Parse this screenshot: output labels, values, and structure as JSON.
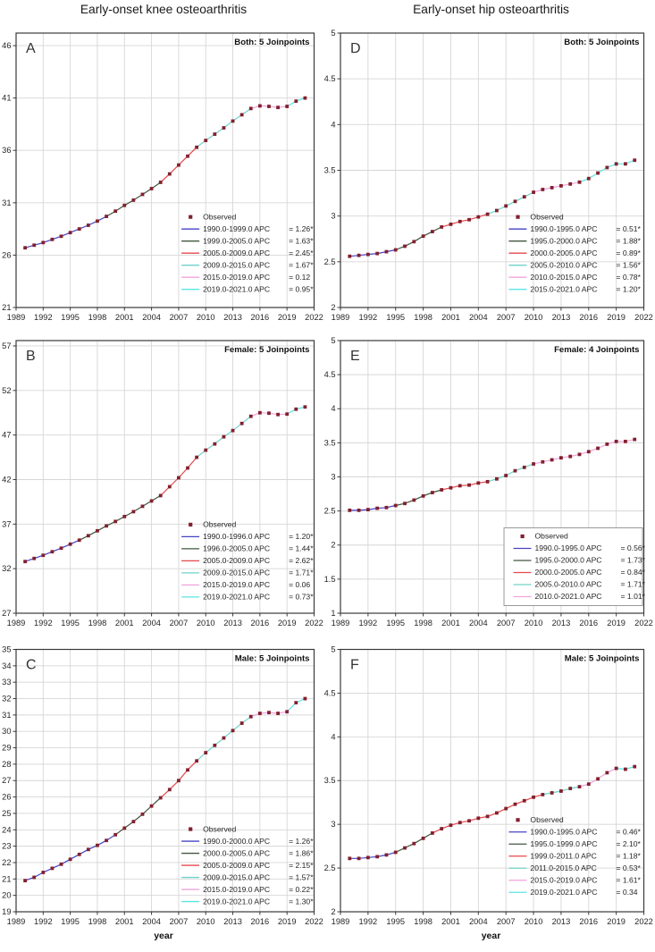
{
  "figure": {
    "column_titles": [
      "Early-onset knee osteoarthritis",
      "Early-onset hip osteoarthritis"
    ],
    "x_axis_label": "year",
    "colors": {
      "observed_marker": "#82202e",
      "blue": "#4743c4",
      "green": "#41573f",
      "red": "#e6484e",
      "teal": "#6fd3cb",
      "pink": "#f0a3dc",
      "cyan": "#5ce4e4",
      "gridline": "#d6d6d6",
      "axis_border": "#3a3a3a",
      "text": "#262626"
    }
  },
  "chart_data": [
    {
      "id": "A",
      "panel_label": "A",
      "title": "Both: 5 Joinpoints",
      "type": "line",
      "x": [
        1990,
        1991,
        1992,
        1993,
        1994,
        1995,
        1996,
        1997,
        1998,
        1999,
        2000,
        2001,
        2002,
        2003,
        2004,
        2005,
        2006,
        2007,
        2008,
        2009,
        2010,
        2011,
        2012,
        2013,
        2014,
        2015,
        2016,
        2017,
        2018,
        2019,
        2020,
        2021
      ],
      "observed": [
        26.7,
        26.95,
        27.2,
        27.5,
        27.8,
        28.15,
        28.5,
        28.85,
        29.25,
        29.7,
        30.2,
        30.75,
        31.25,
        31.8,
        32.35,
        32.95,
        33.75,
        34.6,
        35.45,
        36.3,
        36.95,
        37.55,
        38.15,
        38.8,
        39.4,
        40.0,
        40.25,
        40.2,
        40.1,
        40.2,
        40.7,
        41.0
      ],
      "xlim": [
        1989,
        2022
      ],
      "ylim": [
        21,
        47.2
      ],
      "xticks": [
        1989,
        1992,
        1995,
        1998,
        2001,
        2004,
        2007,
        2010,
        2013,
        2016,
        2019,
        2022
      ],
      "yticks": [
        21,
        26,
        31,
        36,
        41,
        46
      ],
      "legend": {
        "observed_label": "Observed",
        "boxed": false,
        "entries": [
          {
            "period": "1990.0-1999.0 APC",
            "value": "= 1.26*",
            "color": "blue",
            "range": [
              1990,
              1999
            ]
          },
          {
            "period": "1999.0-2005.0 APC",
            "value": "= 1.63*",
            "color": "green",
            "range": [
              1999,
              2005
            ]
          },
          {
            "period": "2005.0-2009.0 APC",
            "value": "= 2.45*",
            "color": "red",
            "range": [
              2005,
              2009
            ]
          },
          {
            "period": "2009.0-2015.0 APC",
            "value": "= 1.67*",
            "color": "teal",
            "range": [
              2009,
              2015
            ]
          },
          {
            "period": "2015.0-2019.0 APC",
            "value": "= 0.12",
            "color": "pink",
            "range": [
              2015,
              2019
            ]
          },
          {
            "period": "2019.0-2021.0 APC",
            "value": "= 0.95*",
            "color": "cyan",
            "range": [
              2019,
              2021
            ]
          }
        ]
      }
    },
    {
      "id": "B",
      "panel_label": "B",
      "title": "Female: 5 Joinpoints",
      "type": "line",
      "x": [
        1990,
        1991,
        1992,
        1993,
        1994,
        1995,
        1996,
        1997,
        1998,
        1999,
        2000,
        2001,
        2002,
        2003,
        2004,
        2005,
        2006,
        2007,
        2008,
        2009,
        2010,
        2011,
        2012,
        2013,
        2014,
        2015,
        2016,
        2017,
        2018,
        2019,
        2020,
        2021
      ],
      "observed": [
        32.8,
        33.15,
        33.5,
        33.9,
        34.3,
        34.75,
        35.2,
        35.7,
        36.25,
        36.8,
        37.3,
        37.85,
        38.4,
        39.0,
        39.6,
        40.2,
        41.2,
        42.2,
        43.3,
        44.5,
        45.3,
        46.0,
        46.8,
        47.5,
        48.3,
        49.1,
        49.5,
        49.45,
        49.3,
        49.35,
        49.9,
        50.15
      ],
      "xlim": [
        1989,
        2022
      ],
      "ylim": [
        27,
        57.6
      ],
      "xticks": [
        1989,
        1992,
        1995,
        1998,
        2001,
        2004,
        2007,
        2010,
        2013,
        2016,
        2019,
        2022
      ],
      "yticks": [
        27,
        32,
        37,
        42,
        47,
        52,
        57
      ],
      "legend": {
        "observed_label": "Observed",
        "boxed": false,
        "entries": [
          {
            "period": "1990.0-1996.0 APC",
            "value": "= 1.20*",
            "color": "blue",
            "range": [
              1990,
              1996
            ]
          },
          {
            "period": "1996.0-2005.0 APC",
            "value": "= 1.44*",
            "color": "green",
            "range": [
              1996,
              2005
            ]
          },
          {
            "period": "2005.0-2009.0 APC",
            "value": "= 2.62*",
            "color": "red",
            "range": [
              2005,
              2009
            ]
          },
          {
            "period": "2009.0-2015.0 APC",
            "value": "= 1.71*",
            "color": "teal",
            "range": [
              2009,
              2015
            ]
          },
          {
            "period": "2015.0-2019.0 APC",
            "value": "= 0.06",
            "color": "pink",
            "range": [
              2015,
              2019
            ]
          },
          {
            "period": "2019.0-2021.0 APC",
            "value": "= 0.73*",
            "color": "cyan",
            "range": [
              2019,
              2021
            ]
          }
        ]
      }
    },
    {
      "id": "C",
      "panel_label": "C",
      "title": "Male: 5 Joinpoints",
      "type": "line",
      "x": [
        1990,
        1991,
        1992,
        1993,
        1994,
        1995,
        1996,
        1997,
        1998,
        1999,
        2000,
        2001,
        2002,
        2003,
        2004,
        2005,
        2006,
        2007,
        2008,
        2009,
        2010,
        2011,
        2012,
        2013,
        2014,
        2015,
        2016,
        2017,
        2018,
        2019,
        2020,
        2021
      ],
      "observed": [
        20.9,
        21.1,
        21.4,
        21.65,
        21.9,
        22.2,
        22.5,
        22.8,
        23.05,
        23.35,
        23.7,
        24.1,
        24.5,
        24.95,
        25.45,
        25.95,
        26.45,
        27.0,
        27.65,
        28.2,
        28.7,
        29.15,
        29.6,
        30.05,
        30.5,
        30.9,
        31.1,
        31.15,
        31.1,
        31.2,
        31.75,
        32.0
      ],
      "xlim": [
        1989,
        2022
      ],
      "ylim": [
        19,
        35
      ],
      "xticks": [
        1989,
        1992,
        1995,
        1998,
        2001,
        2004,
        2007,
        2010,
        2013,
        2016,
        2019,
        2022
      ],
      "yticks": [
        19,
        20,
        21,
        22,
        23,
        24,
        25,
        26,
        27,
        28,
        29,
        30,
        31,
        32,
        33,
        34,
        35
      ],
      "legend": {
        "observed_label": "Observed",
        "boxed": false,
        "entries": [
          {
            "period": "1990.0-2000.0 APC",
            "value": "= 1.26*",
            "color": "blue",
            "range": [
              1990,
              2000
            ]
          },
          {
            "period": "2000.0-2005.0 APC",
            "value": "= 1.86*",
            "color": "green",
            "range": [
              2000,
              2005
            ]
          },
          {
            "period": "2005.0-2009.0 APC",
            "value": "= 2.15*",
            "color": "red",
            "range": [
              2005,
              2009
            ]
          },
          {
            "period": "2009.0-2015.0 APC",
            "value": "= 1.57*",
            "color": "teal",
            "range": [
              2009,
              2015
            ]
          },
          {
            "period": "2015.0-2019.0 APC",
            "value": "= 0.22*",
            "color": "pink",
            "range": [
              2015,
              2019
            ]
          },
          {
            "period": "2019.0-2021.0 APC",
            "value": "= 1.30*",
            "color": "cyan",
            "range": [
              2019,
              2021
            ]
          }
        ]
      }
    },
    {
      "id": "D",
      "panel_label": "D",
      "title": "Both: 5 Joinpoints",
      "type": "line",
      "x": [
        1990,
        1991,
        1992,
        1993,
        1994,
        1995,
        1996,
        1997,
        1998,
        1999,
        2000,
        2001,
        2002,
        2003,
        2004,
        2005,
        2006,
        2007,
        2008,
        2009,
        2010,
        2011,
        2012,
        2013,
        2014,
        2015,
        2016,
        2017,
        2018,
        2019,
        2020,
        2021
      ],
      "observed": [
        2.56,
        2.57,
        2.58,
        2.59,
        2.61,
        2.63,
        2.67,
        2.72,
        2.78,
        2.83,
        2.88,
        2.91,
        2.94,
        2.96,
        2.99,
        3.02,
        3.06,
        3.11,
        3.16,
        3.21,
        3.26,
        3.29,
        3.31,
        3.33,
        3.35,
        3.37,
        3.41,
        3.47,
        3.53,
        3.57,
        3.57,
        3.61
      ],
      "xlim": [
        1989,
        2022
      ],
      "ylim": [
        2,
        5
      ],
      "xticks": [
        1989,
        1992,
        1995,
        1998,
        2001,
        2004,
        2007,
        2010,
        2013,
        2016,
        2019,
        2022
      ],
      "yticks": [
        2,
        2.5,
        3,
        3.5,
        4,
        4.5,
        5
      ],
      "legend": {
        "observed_label": "Observed",
        "boxed": false,
        "entries": [
          {
            "period": "1990.0-1995.0 APC",
            "value": "= 0.51*",
            "color": "blue",
            "range": [
              1990,
              1995
            ]
          },
          {
            "period": "1995.0-2000.0 APC",
            "value": "= 1.88*",
            "color": "green",
            "range": [
              1995,
              2000
            ]
          },
          {
            "period": "2000.0-2005.0 APC",
            "value": "= 0.89*",
            "color": "red",
            "range": [
              2000,
              2005
            ]
          },
          {
            "period": "2005.0-2010.0 APC",
            "value": "= 1.56*",
            "color": "teal",
            "range": [
              2005,
              2010
            ]
          },
          {
            "period": "2010.0-2015.0 APC",
            "value": "= 0.78*",
            "color": "pink",
            "range": [
              2010,
              2015
            ]
          },
          {
            "period": "2015.0-2021.0 APC",
            "value": "= 1.20*",
            "color": "cyan",
            "range": [
              2015,
              2021
            ]
          }
        ]
      }
    },
    {
      "id": "E",
      "panel_label": "E",
      "title": "Female: 4 Joinpoints",
      "type": "line",
      "x": [
        1990,
        1991,
        1992,
        1993,
        1994,
        1995,
        1996,
        1997,
        1998,
        1999,
        2000,
        2001,
        2002,
        2003,
        2004,
        2005,
        2006,
        2007,
        2008,
        2009,
        2010,
        2011,
        2012,
        2013,
        2014,
        2015,
        2016,
        2017,
        2018,
        2019,
        2020,
        2021
      ],
      "observed": [
        2.51,
        2.51,
        2.52,
        2.54,
        2.55,
        2.58,
        2.61,
        2.66,
        2.72,
        2.77,
        2.81,
        2.84,
        2.87,
        2.88,
        2.91,
        2.93,
        2.97,
        3.02,
        3.09,
        3.14,
        3.19,
        3.22,
        3.25,
        3.28,
        3.3,
        3.33,
        3.37,
        3.42,
        3.48,
        3.52,
        3.52,
        3.55
      ],
      "xlim": [
        1989,
        2022
      ],
      "ylim": [
        1,
        5
      ],
      "xticks": [
        1989,
        1992,
        1995,
        1998,
        2001,
        2004,
        2007,
        2010,
        2013,
        2016,
        2019,
        2022
      ],
      "yticks": [
        1,
        1.5,
        2,
        2.5,
        3,
        3.5,
        4,
        4.5,
        5
      ],
      "legend": {
        "observed_label": "Observed",
        "boxed": true,
        "entries": [
          {
            "period": "1990.0-1995.0 APC",
            "value": "= 0.56*",
            "color": "blue",
            "range": [
              1990,
              1995
            ]
          },
          {
            "period": "1995.0-2000.0 APC",
            "value": "= 1.73*",
            "color": "green",
            "range": [
              1995,
              2000
            ]
          },
          {
            "period": "2000.0-2005.0 APC",
            "value": "= 0.84*",
            "color": "red",
            "range": [
              2000,
              2005
            ]
          },
          {
            "period": "2005.0-2010.0 APC",
            "value": "= 1.71*",
            "color": "teal",
            "range": [
              2005,
              2010
            ]
          },
          {
            "period": "2010.0-2021.0 APC",
            "value": "= 1.01*",
            "color": "pink",
            "range": [
              2010,
              2021
            ]
          }
        ]
      }
    },
    {
      "id": "F",
      "panel_label": "F",
      "title": "Male: 5 Joinpoints",
      "type": "line",
      "x": [
        1990,
        1991,
        1992,
        1993,
        1994,
        1995,
        1996,
        1997,
        1998,
        1999,
        2000,
        2001,
        2002,
        2003,
        2004,
        2005,
        2006,
        2007,
        2008,
        2009,
        2010,
        2011,
        2012,
        2013,
        2014,
        2015,
        2016,
        2017,
        2018,
        2019,
        2020,
        2021
      ],
      "observed": [
        2.61,
        2.61,
        2.62,
        2.63,
        2.65,
        2.68,
        2.73,
        2.78,
        2.84,
        2.9,
        2.95,
        2.99,
        3.02,
        3.04,
        3.07,
        3.09,
        3.13,
        3.18,
        3.23,
        3.27,
        3.31,
        3.34,
        3.36,
        3.38,
        3.41,
        3.43,
        3.46,
        3.52,
        3.59,
        3.64,
        3.63,
        3.66
      ],
      "xlim": [
        1989,
        2022
      ],
      "ylim": [
        2,
        5
      ],
      "xticks": [
        1989,
        1992,
        1995,
        1998,
        2001,
        2004,
        2007,
        2010,
        2013,
        2016,
        2019,
        2022
      ],
      "yticks": [
        2,
        2.5,
        3,
        3.5,
        4,
        4.5,
        5
      ],
      "legend": {
        "observed_label": "Observed",
        "boxed": false,
        "entries": [
          {
            "period": "1990.0-1995.0 APC",
            "value": "= 0.46*",
            "color": "blue",
            "range": [
              1990,
              1995
            ]
          },
          {
            "period": "1995.0-1999.0 APC",
            "value": "= 2.10*",
            "color": "green",
            "range": [
              1995,
              1999
            ]
          },
          {
            "period": "1999.0-2011.0 APC",
            "value": "= 1.18*",
            "color": "red",
            "range": [
              1999,
              2011
            ]
          },
          {
            "period": "2011.0-2015.0 APC",
            "value": "= 0.53*",
            "color": "teal",
            "range": [
              2011,
              2015
            ]
          },
          {
            "period": "2015.0-2019.0 APC",
            "value": "= 1.61*",
            "color": "pink",
            "range": [
              2015,
              2019
            ]
          },
          {
            "period": "2019.0-2021.0 APC",
            "value": "= 0.34",
            "color": "cyan",
            "range": [
              2019,
              2021
            ]
          }
        ]
      }
    }
  ]
}
